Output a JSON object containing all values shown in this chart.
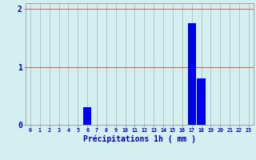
{
  "hours": [
    0,
    1,
    2,
    3,
    4,
    5,
    6,
    7,
    8,
    9,
    10,
    11,
    12,
    13,
    14,
    15,
    16,
    17,
    18,
    19,
    20,
    21,
    22,
    23
  ],
  "values": [
    0,
    0,
    0,
    0,
    0,
    0,
    0.3,
    0,
    0,
    0,
    0,
    0,
    0,
    0,
    0,
    0,
    0,
    1.75,
    0.8,
    0,
    0,
    0,
    0,
    0
  ],
  "bar_color": "#0000ee",
  "bg_color": "#d4efef",
  "grid_color": "#b0b0b0",
  "grid_color_h": "#cc4444",
  "xlabel": "Précipitations 1h ( mm )",
  "xlabel_color": "#0000bb",
  "tick_color": "#0000bb",
  "ylim": [
    0,
    2.1
  ],
  "yticks": [
    0,
    1,
    2
  ],
  "xlim": [
    -0.5,
    23.5
  ],
  "bar_width": 0.85
}
